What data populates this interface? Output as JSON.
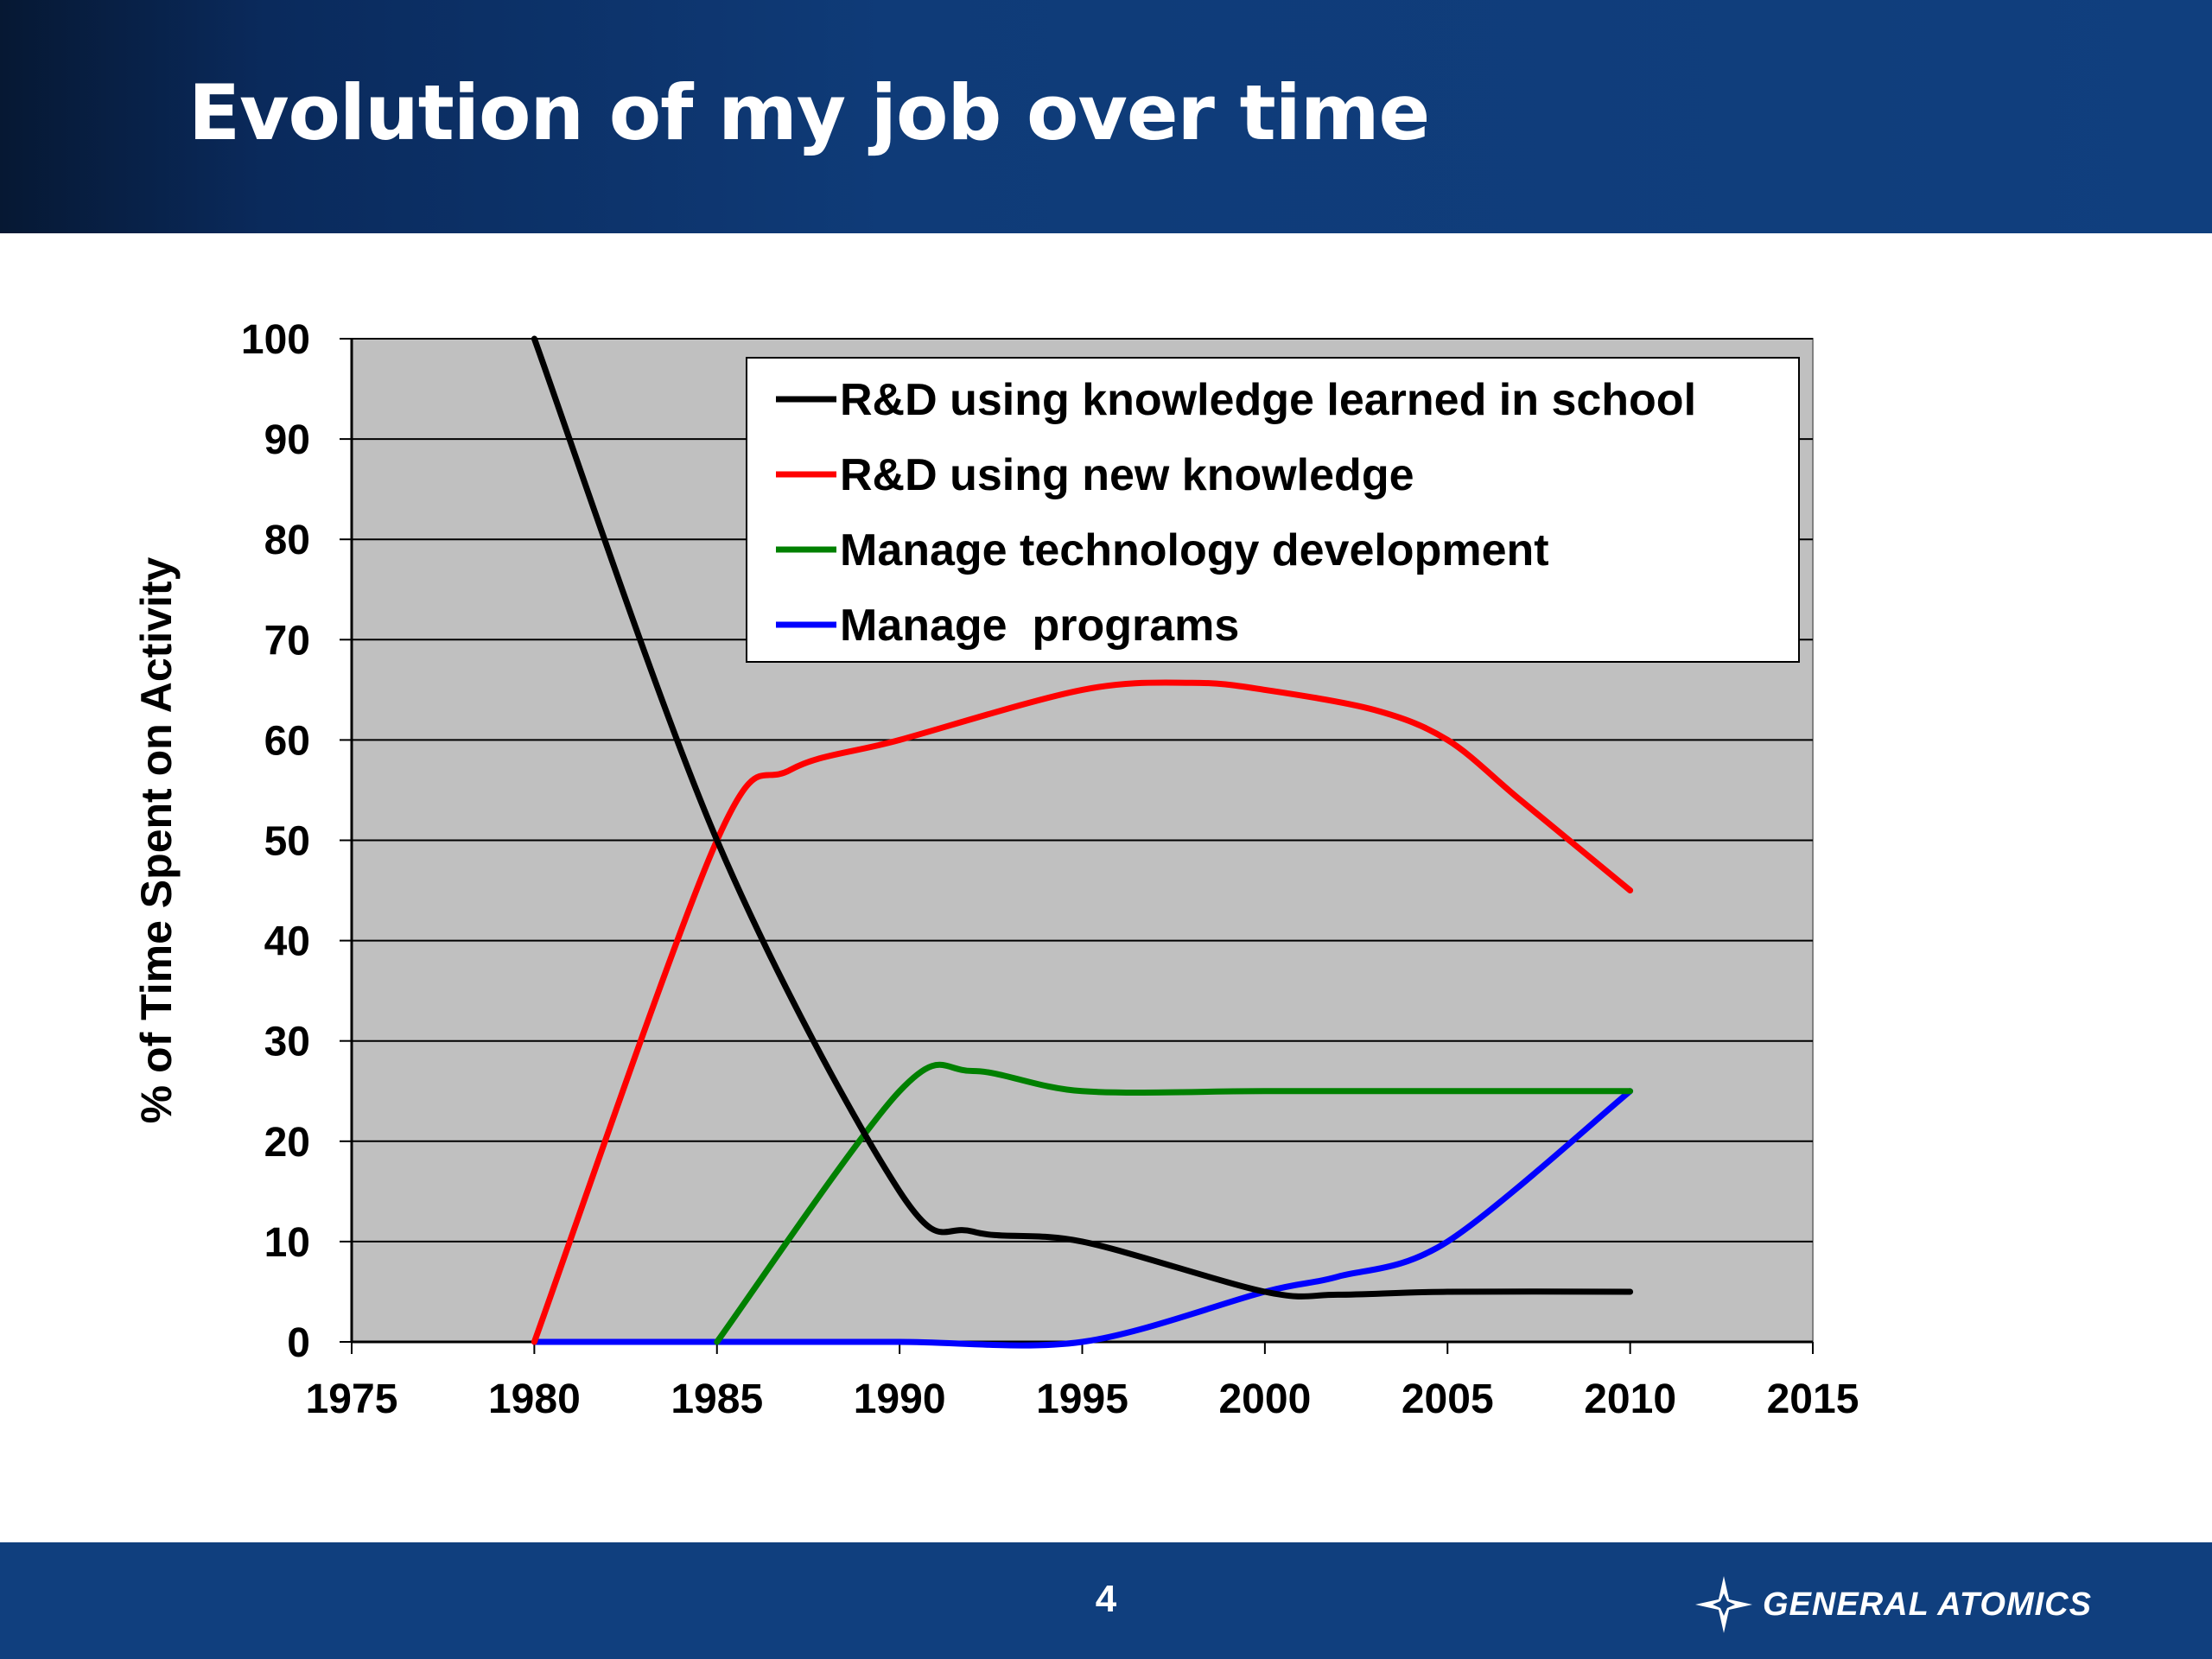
{
  "slide": {
    "title": "Evolution of my job over time",
    "page_number": "4",
    "logo_text": "GENERAL ATOMICS"
  },
  "colors": {
    "header_bg": "#103f7e",
    "footer_bg": "#103f7e",
    "plot_bg": "#c0c0c0"
  },
  "chart_data": {
    "type": "line",
    "title": "",
    "xlabel": "",
    "ylabel": "% of Time Spent on Activity",
    "xlim": [
      1975,
      2015
    ],
    "ylim": [
      0,
      100
    ],
    "xticks": [
      1975,
      1980,
      1985,
      1990,
      1995,
      2000,
      2005,
      2010,
      2015
    ],
    "yticks": [
      0,
      10,
      20,
      30,
      40,
      50,
      60,
      70,
      80,
      90,
      100
    ],
    "grid": true,
    "legend_position": "top-right",
    "series": [
      {
        "name": "R&D using knowledge learned in school",
        "color": "#000000",
        "x": [
          1980,
          1985,
          1990,
          1992,
          1995,
          2000,
          2002,
          2005,
          2010
        ],
        "y": [
          100,
          50,
          15,
          11,
          10,
          5,
          4.7,
          5,
          5
        ]
      },
      {
        "name": "R&D using new knowledge",
        "color": "#ff0000",
        "x": [
          1980,
          1985,
          1987,
          1990,
          1995,
          1998,
          2000,
          2003,
          2005,
          2007,
          2010
        ],
        "y": [
          0,
          50,
          57,
          60,
          65,
          65.7,
          65,
          63,
          60,
          54,
          45
        ]
      },
      {
        "name": "Manage technology development",
        "color": "#008000",
        "x": [
          1985,
          1990,
          1992,
          1995,
          2000,
          2005,
          2010
        ],
        "y": [
          0,
          25,
          27,
          25,
          25,
          25,
          25
        ]
      },
      {
        "name": "Manage  programs",
        "color": "#0000ff",
        "x": [
          1980,
          1985,
          1990,
          1995,
          2000,
          2002,
          2005,
          2010
        ],
        "y": [
          0,
          0,
          0,
          0,
          5,
          6.5,
          10,
          25
        ]
      }
    ]
  }
}
